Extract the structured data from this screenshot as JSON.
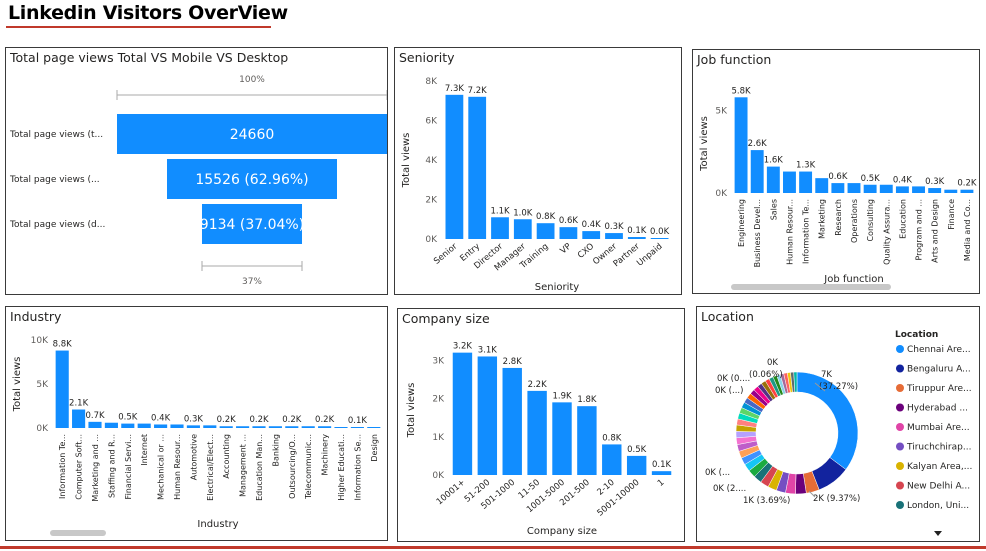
{
  "dashboard": {
    "title": "Linkedin Visitors OverView"
  },
  "colors": {
    "bar": "#118dff",
    "text": "#252423",
    "axis": "#605e5c",
    "accent": "#c0392b"
  },
  "funnel": {
    "title": "Total page views Total VS Mobile VS Desktop",
    "top_pct": "100%",
    "bottom_pct": "37%",
    "rows": [
      {
        "label": "Total page views (t...",
        "value": 24660,
        "display": "24660"
      },
      {
        "label": "Total page views (...",
        "value": 15526,
        "display": "15526 (62.96%)"
      },
      {
        "label": "Total page views (d...",
        "value": 9134,
        "display": "9134 (37.04%)"
      }
    ]
  },
  "chart_data": [
    {
      "id": "seniority",
      "type": "bar",
      "title": "Seniority",
      "xlabel": "Seniority",
      "ylabel": "Total views",
      "ylim": [
        0,
        8000
      ],
      "yticks": [
        "0K",
        "2K",
        "4K",
        "6K",
        "8K"
      ],
      "ytick_values": [
        0,
        2000,
        4000,
        6000,
        8000
      ],
      "categories": [
        "Senior",
        "Entry",
        "Director",
        "Manager",
        "Training",
        "VP",
        "CXO",
        "Owner",
        "Partner",
        "Unpaid"
      ],
      "values": [
        7300,
        7200,
        1100,
        1000,
        800,
        600,
        400,
        300,
        100,
        0
      ],
      "labels": [
        "7.3K",
        "7.2K",
        "1.1K",
        "1.0K",
        "0.8K",
        "0.6K",
        "0.4K",
        "0.3K",
        "0.1K",
        "0.0K"
      ]
    },
    {
      "id": "job",
      "type": "bar",
      "title": "Job function",
      "xlabel": "Job function",
      "ylabel": "Total views",
      "ylim": [
        0,
        6000
      ],
      "yticks": [
        "0K",
        "5K"
      ],
      "ytick_values": [
        0,
        5000
      ],
      "categories": [
        "Engineering",
        "Business Devel...",
        "Sales",
        "Human Resour...",
        "Information Te...",
        "Marketing",
        "Research",
        "Operations",
        "Consulting",
        "Quality Assura...",
        "Education",
        "Program and ...",
        "Arts and Design",
        "Finance",
        "Media and Co..."
      ],
      "values": [
        5800,
        2600,
        1600,
        1300,
        1300,
        900,
        600,
        600,
        500,
        500,
        400,
        400,
        300,
        200,
        200
      ],
      "labels": [
        "5.8K",
        "2.6K",
        "1.6K",
        "",
        "1.3K",
        "",
        "0.6K",
        "",
        "0.5K",
        "",
        "0.4K",
        "",
        "0.3K",
        "",
        "0.2K"
      ]
    },
    {
      "id": "industry",
      "type": "bar",
      "title": "Industry",
      "xlabel": "Industry",
      "ylabel": "Total views",
      "ylim": [
        0,
        10000
      ],
      "yticks": [
        "0K",
        "5K",
        "10K"
      ],
      "ytick_values": [
        0,
        5000,
        10000
      ],
      "categories": [
        "Information Te...",
        "Computer Soft...",
        "Marketing and ...",
        "Staffing and R...",
        "Financial Servi...",
        "Internet",
        "Mechanical or ...",
        "Human Resour...",
        "Automotive",
        "Electrical/Elect...",
        "Accounting",
        "Management ...",
        "Education Man...",
        "Banking",
        "Outsourcing/O...",
        "Telecommunic...",
        "Machinery",
        "Higher Educati...",
        "Information Se...",
        "Design"
      ],
      "values": [
        8800,
        2100,
        700,
        600,
        500,
        500,
        400,
        400,
        300,
        300,
        200,
        200,
        200,
        200,
        200,
        200,
        200,
        100,
        100,
        100
      ],
      "labels": [
        "8.8K",
        "2.1K",
        "0.7K",
        "",
        "0.5K",
        "",
        "0.4K",
        "",
        "0.3K",
        "",
        "0.2K",
        "",
        "0.2K",
        "",
        "0.2K",
        "",
        "0.2K",
        "",
        "0.1K",
        ""
      ]
    },
    {
      "id": "company",
      "type": "bar",
      "title": "Company size",
      "xlabel": "Company size",
      "ylabel": "Total views",
      "ylim": [
        0,
        3400
      ],
      "yticks": [
        "0K",
        "1K",
        "2K",
        "3K"
      ],
      "ytick_values": [
        0,
        1000,
        2000,
        3000
      ],
      "categories": [
        "10001+",
        "51-200",
        "501-1000",
        "11-50",
        "1001-5000",
        "201-500",
        "2-10",
        "5001-10000",
        "1"
      ],
      "values": [
        3200,
        3100,
        2800,
        2200,
        1900,
        1800,
        800,
        500,
        100
      ],
      "labels": [
        "3.2K",
        "3.1K",
        "2.8K",
        "2.2K",
        "1.9K",
        "1.8K",
        "0.8K",
        "0.5K",
        "0.1K"
      ]
    },
    {
      "id": "location",
      "type": "pie",
      "title": "Location",
      "legend_title": "Location",
      "legend": [
        {
          "name": "Chennai Are...",
          "color": "#118dff"
        },
        {
          "name": "Bengaluru A...",
          "color": "#12239e"
        },
        {
          "name": "Tiruppur Are...",
          "color": "#e66c37"
        },
        {
          "name": "Hyderabad ...",
          "color": "#6b007b"
        },
        {
          "name": "Mumbai Are...",
          "color": "#e044a7"
        },
        {
          "name": "Tiruchchirap...",
          "color": "#744ec2"
        },
        {
          "name": "Kalyan Area,...",
          "color": "#d9b300"
        },
        {
          "name": "New Delhi A...",
          "color": "#d64550"
        },
        {
          "name": "London, Uni...",
          "color": "#197278"
        }
      ],
      "slices": [
        {
          "value": 37.27,
          "color": "#118dff"
        },
        {
          "value": 9.37,
          "color": "#12239e"
        },
        {
          "value": 3.69,
          "color": "#e66c37"
        },
        {
          "value": 3.0,
          "color": "#6b007b"
        },
        {
          "value": 2.8,
          "color": "#e044a7"
        },
        {
          "value": 2.6,
          "color": "#744ec2"
        },
        {
          "value": 2.5,
          "color": "#d9b300"
        },
        {
          "value": 2.4,
          "color": "#d64550"
        },
        {
          "value": 2.3,
          "color": "#197278"
        },
        {
          "value": 2.2,
          "color": "#1aab40"
        },
        {
          "value": 2.1,
          "color": "#15c6f4"
        },
        {
          "value": 2.0,
          "color": "#4092ff"
        },
        {
          "value": 2.0,
          "color": "#ffa058"
        },
        {
          "value": 1.9,
          "color": "#be5dc9"
        },
        {
          "value": 1.9,
          "color": "#f472d0"
        },
        {
          "value": 1.8,
          "color": "#b5a1ff"
        },
        {
          "value": 1.8,
          "color": "#c4a200"
        },
        {
          "value": 1.7,
          "color": "#ff8080"
        },
        {
          "value": 1.7,
          "color": "#00dbbc"
        },
        {
          "value": 1.6,
          "color": "#5bd667"
        },
        {
          "value": 1.6,
          "color": "#0091d5"
        },
        {
          "value": 1.5,
          "color": "#4668c5"
        },
        {
          "value": 1.5,
          "color": "#ff6300"
        },
        {
          "value": 1.4,
          "color": "#99008a"
        },
        {
          "value": 1.4,
          "color": "#ec008c"
        },
        {
          "value": 1.3,
          "color": "#533285"
        },
        {
          "value": 1.3,
          "color": "#99700a"
        },
        {
          "value": 1.2,
          "color": "#ff4141"
        },
        {
          "value": 1.2,
          "color": "#1f9a85"
        },
        {
          "value": 1.1,
          "color": "#25891c"
        },
        {
          "value": 1.0,
          "color": "#8ad4eb"
        },
        {
          "value": 1.0,
          "color": "#a66999"
        },
        {
          "value": 1.0,
          "color": "#fd625e"
        },
        {
          "value": 0.9,
          "color": "#f2c80f"
        },
        {
          "value": 0.9,
          "color": "#5f6b6d"
        },
        {
          "value": 0.9,
          "color": "#01b8aa"
        }
      ],
      "callouts": [
        "7K",
        "(37.27%)",
        "2K (9.37%)",
        "1K (3.69%)",
        "0K (2....",
        "0K (...",
        "0K (...)",
        "0K (0....",
        "(0.06%)",
        "0K"
      ]
    }
  ]
}
